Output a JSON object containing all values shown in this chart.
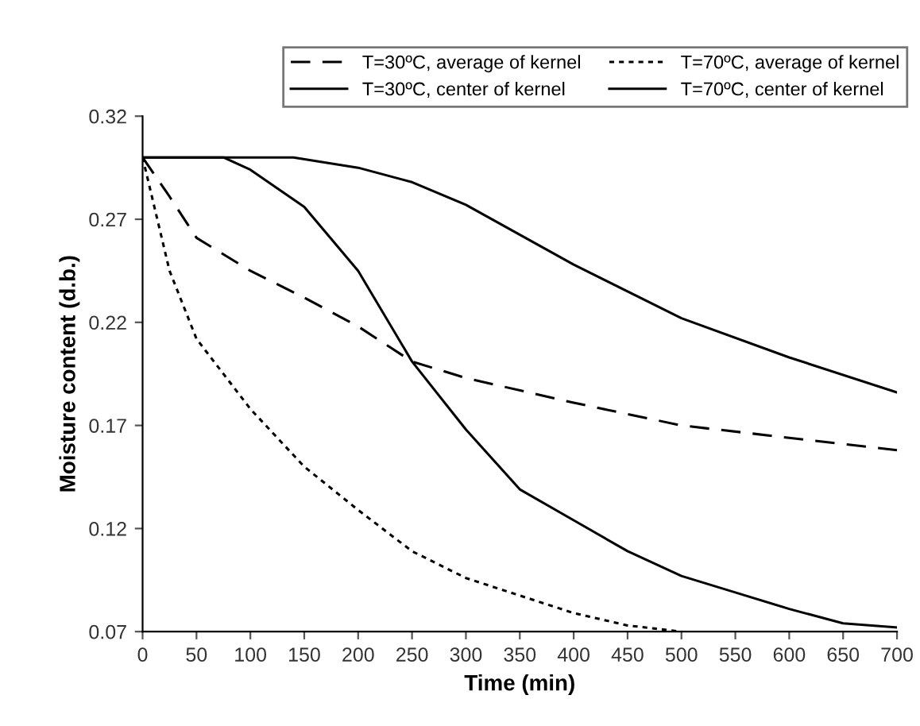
{
  "chart_data": {
    "type": "line",
    "xlabel": "Time (min)",
    "ylabel": "Moisture content (d.b.)",
    "xlim": [
      0,
      700
    ],
    "xticks": [
      0,
      50,
      100,
      150,
      200,
      250,
      300,
      350,
      400,
      450,
      500,
      550,
      600,
      650,
      700
    ],
    "ylim": [
      0.07,
      0.32
    ],
    "yticks": [
      0.07,
      0.12,
      0.17,
      0.22,
      0.27,
      0.32
    ],
    "grid": false,
    "legend": "top",
    "marker": "none",
    "series": [
      {
        "name": "T=30ºC, average of kernel",
        "color": "#000000",
        "line_style": "dashed",
        "x": [
          0,
          25,
          50,
          100,
          150,
          200,
          250,
          300,
          400,
          500,
          600,
          700
        ],
        "values": [
          0.3,
          0.281,
          0.261,
          0.245,
          0.232,
          0.218,
          0.201,
          0.193,
          0.181,
          0.17,
          0.164,
          0.158
        ]
      },
      {
        "name": "T=30ºC, center of kernel",
        "color": "#000000",
        "line_style": "solid",
        "x": [
          0,
          140,
          200,
          250,
          300,
          400,
          500,
          600,
          700
        ],
        "values": [
          0.3,
          0.3,
          0.295,
          0.288,
          0.277,
          0.248,
          0.222,
          0.203,
          0.186
        ]
      },
      {
        "name": "T=70ºC, average of kernel",
        "color": "#000000",
        "line_style": "dotted",
        "x": [
          0,
          10,
          25,
          50,
          100,
          150,
          200,
          250,
          300,
          400,
          450,
          500
        ],
        "values": [
          0.3,
          0.278,
          0.245,
          0.212,
          0.178,
          0.15,
          0.129,
          0.109,
          0.096,
          0.079,
          0.073,
          0.07
        ]
      },
      {
        "name": "T=70ºC, center of kernel",
        "color": "#000000",
        "line_style": "solid",
        "x": [
          0,
          75,
          100,
          150,
          200,
          250,
          300,
          350,
          400,
          450,
          500,
          550,
          600,
          650,
          700
        ],
        "values": [
          0.3,
          0.3,
          0.294,
          0.276,
          0.245,
          0.201,
          0.168,
          0.139,
          0.124,
          0.109,
          0.097,
          0.089,
          0.081,
          0.074,
          0.072
        ]
      }
    ]
  }
}
